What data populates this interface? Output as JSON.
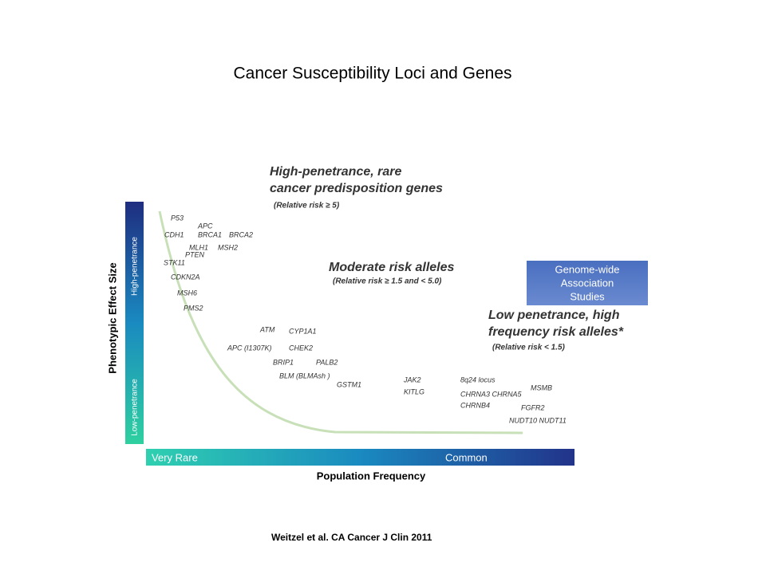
{
  "title": "Cancer Susceptibility Loci and Genes",
  "y_axis": {
    "label": "Phenotypic Effect Size",
    "high": "High-penetrance",
    "low": "Low-penetrance"
  },
  "x_axis": {
    "label": "Population Frequency",
    "left": "Very Rare",
    "right": "Common"
  },
  "regions": [
    {
      "lines": [
        "High-penetrance, rare",
        "cancer predisposition genes"
      ],
      "note": "(Relative risk ≥ 5)"
    },
    {
      "lines": [
        "Moderate risk alleles"
      ],
      "note": "(Relative risk  ≥  1.5 and < 5.0)"
    },
    {
      "lines": [
        "Low penetrance, high",
        "frequency risk alleles*"
      ],
      "note": "(Relative risk < 1.5)"
    }
  ],
  "gwas_box": [
    "Genome-wide",
    "Association",
    "Studies"
  ],
  "genes": [
    "P53",
    "APC",
    "CDH1",
    "BRCA1",
    "BRCA2",
    "MLH1",
    "MSH2",
    "PTEN",
    "STK11",
    "CDKN2A",
    "MSH6",
    "PMS2",
    "ATM",
    "CYP1A1",
    "APC (I1307K)",
    "CHEK2",
    "BRIP1",
    "PALB2",
    "BLM (BLMAsh )",
    "GSTM1",
    "JAK2",
    "KITLG",
    "8q24 locus",
    "CHRNA3 CHRNA5",
    "MSMB",
    "CHRNB4",
    "FGFR2",
    "NUDT10 NUDT11"
  ],
  "citation": "Weitzel et al. CA Cancer J  Clin 2011"
}
